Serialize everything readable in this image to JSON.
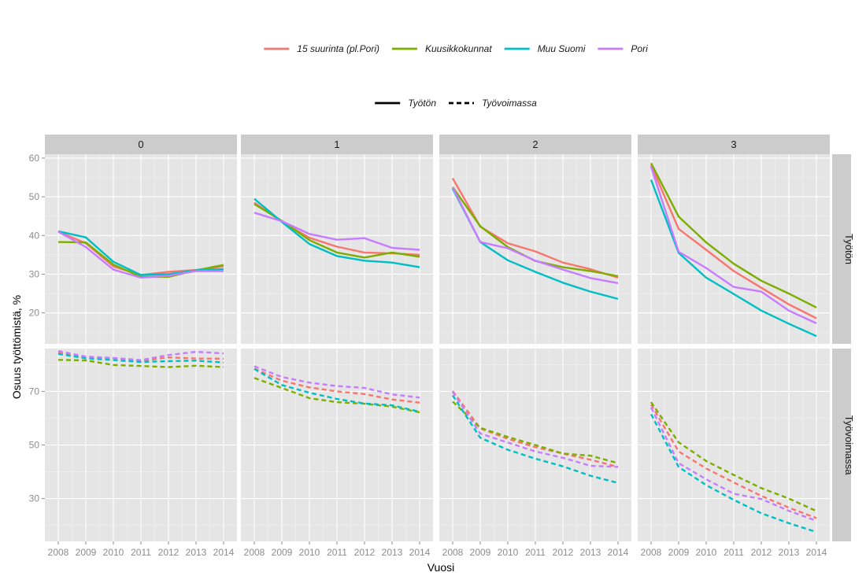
{
  "chart_data": {
    "type": "line",
    "xlabel": "Vuosi",
    "ylabel": "Osuus työttömistä, %",
    "x": [
      2008,
      2009,
      2010,
      2011,
      2012,
      2013,
      2014
    ],
    "columns": [
      "0",
      "1",
      "2",
      "3"
    ],
    "rows": [
      "Työtön",
      "Työvoimassa"
    ],
    "row_ylim": [
      [
        12,
        61
      ],
      [
        14,
        86
      ]
    ],
    "row_yticks": [
      [
        20,
        30,
        40,
        50,
        60
      ],
      [
        30,
        50,
        70
      ]
    ],
    "grid": true,
    "legend": {
      "placement": "top",
      "colour_entries": [
        {
          "name": "15 suurinta (pl.Pori)",
          "color": "#f8766d"
        },
        {
          "name": "Kuusikkokunnat",
          "color": "#7cae00"
        },
        {
          "name": "Muu Suomi",
          "color": "#00bfc4"
        },
        {
          "name": "Pori",
          "color": "#c77cff"
        }
      ],
      "linetype_entries": [
        {
          "name": "Työtön",
          "linetype": "solid"
        },
        {
          "name": "Työvoimassa",
          "linetype": "dashed"
        }
      ]
    },
    "panels": [
      {
        "row": 0,
        "col": 0,
        "series": {
          "15 suurinta (pl.Pori)": [
            41.0,
            38.0,
            32.0,
            29.8,
            30.6,
            31.1,
            32.0
          ],
          "Kuusikkokunnat": [
            38.3,
            38.2,
            32.5,
            29.3,
            29.3,
            31.0,
            32.4
          ],
          "Muu Suomi": [
            41.1,
            39.5,
            33.2,
            29.8,
            30.0,
            31.0,
            31.3
          ],
          "Pori": [
            41.0,
            37.0,
            31.2,
            29.1,
            29.6,
            30.8,
            30.8
          ]
        }
      },
      {
        "row": 0,
        "col": 1,
        "series": {
          "15 suurinta (pl.Pori)": [
            48.5,
            43.6,
            39.4,
            37.1,
            35.6,
            35.4,
            35.0
          ],
          "Kuusikkokunnat": [
            48.1,
            43.8,
            38.8,
            35.6,
            34.3,
            35.6,
            34.5
          ],
          "Muu Suomi": [
            49.5,
            43.5,
            37.8,
            34.7,
            33.5,
            33.0,
            31.8
          ],
          "Pori": [
            45.9,
            43.7,
            40.4,
            38.9,
            39.3,
            36.8,
            36.3
          ]
        }
      },
      {
        "row": 0,
        "col": 2,
        "series": {
          "15 suurinta (pl.Pori)": [
            54.8,
            42.3,
            38.0,
            35.9,
            33.0,
            31.3,
            29.1
          ],
          "Kuusikkokunnat": [
            52.5,
            42.4,
            37.0,
            33.4,
            31.8,
            30.8,
            29.5
          ],
          "Muu Suomi": [
            52.1,
            38.3,
            33.6,
            30.6,
            27.8,
            25.5,
            23.6
          ],
          "Pori": [
            52.4,
            38.3,
            36.7,
            33.5,
            31.2,
            29.0,
            27.7
          ]
        }
      },
      {
        "row": 0,
        "col": 3,
        "series": {
          "15 suurinta (pl.Pori)": [
            58.2,
            41.7,
            36.3,
            30.8,
            26.5,
            22.2,
            18.6
          ],
          "Kuusikkokunnat": [
            58.7,
            44.9,
            38.2,
            32.7,
            28.3,
            25.0,
            21.4
          ],
          "Muu Suomi": [
            54.4,
            35.5,
            29.1,
            24.9,
            20.6,
            17.2,
            14.0
          ],
          "Pori": [
            57.8,
            35.8,
            31.6,
            26.7,
            25.5,
            20.6,
            17.3
          ]
        }
      },
      {
        "row": 1,
        "col": 0,
        "series": {
          "15 suurinta (pl.Pori)": [
            84.5,
            82.5,
            82.5,
            81.4,
            82.7,
            82.3,
            82.2
          ],
          "Kuusikkokunnat": [
            81.8,
            81.6,
            79.9,
            79.5,
            79.1,
            79.6,
            79.1
          ],
          "Muu Suomi": [
            84.0,
            82.4,
            81.7,
            81.0,
            81.3,
            81.5,
            80.8
          ],
          "Pori": [
            85.1,
            83.0,
            82.5,
            81.7,
            83.6,
            84.8,
            84.2
          ]
        }
      },
      {
        "row": 1,
        "col": 1,
        "series": {
          "15 suurinta (pl.Pori)": [
            78.5,
            74.0,
            71.5,
            70.0,
            69.0,
            67.0,
            65.8
          ],
          "Kuusikkokunnat": [
            75.0,
            71.3,
            67.5,
            66.0,
            65.4,
            64.3,
            62.2
          ],
          "Muu Suomi": [
            78.4,
            72.4,
            69.5,
            67.2,
            65.5,
            64.8,
            62.4
          ],
          "Pori": [
            79.4,
            75.4,
            73.3,
            72.0,
            71.3,
            68.9,
            67.7
          ]
        }
      },
      {
        "row": 1,
        "col": 2,
        "series": {
          "15 suurinta (pl.Pori)": [
            70.2,
            56.2,
            52.3,
            49.2,
            46.8,
            44.5,
            41.8
          ],
          "Kuusikkokunnat": [
            66.2,
            56.4,
            53.0,
            50.0,
            46.8,
            46.0,
            43.2
          ],
          "Muu Suomi": [
            68.5,
            52.7,
            48.2,
            44.9,
            42.0,
            38.5,
            35.8
          ],
          "Pori": [
            69.8,
            54.3,
            50.9,
            47.6,
            45.2,
            42.2,
            41.8
          ]
        }
      },
      {
        "row": 1,
        "col": 3,
        "series": {
          "15 suurinta (pl.Pori)": [
            65.1,
            47.6,
            41.2,
            36.0,
            31.0,
            26.6,
            22.7
          ],
          "Kuusikkokunnat": [
            66.0,
            51.0,
            44.0,
            38.8,
            33.9,
            30.0,
            25.3
          ],
          "Muu Suomi": [
            61.5,
            41.8,
            35.0,
            29.5,
            24.5,
            20.8,
            17.5
          ],
          "Pori": [
            64.0,
            43.2,
            37.2,
            31.8,
            29.8,
            25.4,
            21.7
          ]
        }
      }
    ]
  }
}
